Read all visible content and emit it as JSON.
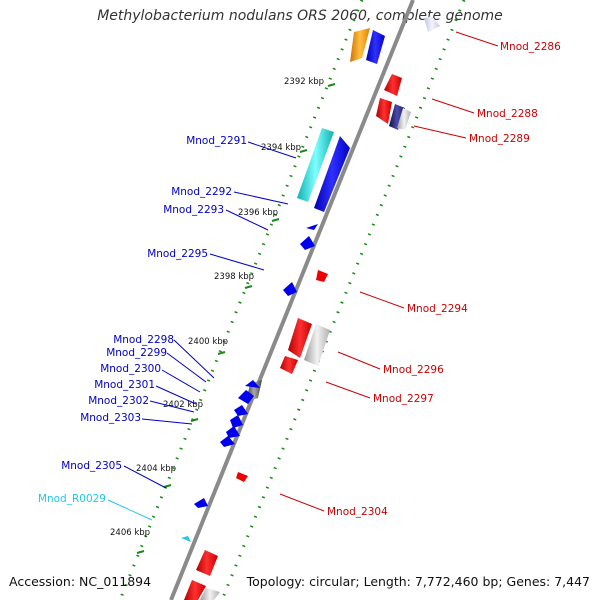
{
  "title": "Methylobacterium nodulans ORS 2060, complete genome",
  "accession": "Accession: NC_011894",
  "summary": "Topology: circular; Length: 7,772,460 bp; Genes: 7,447",
  "colors": {
    "plus": "#0000ee",
    "minus": "#ee0000",
    "rna": "#22c8e8",
    "tick": "#1a8a1a",
    "backbone": "#8a8a8a"
  },
  "ticks": [
    "2392 kbp",
    "2394 kbp",
    "2396 kbp",
    "2398 kbp",
    "2400 kbp",
    "2402 kbp",
    "2404 kbp",
    "2406 kbp"
  ],
  "plus_labels": [
    "Mnod_2291",
    "Mnod_2292",
    "Mnod_2293",
    "Mnod_2295",
    "Mnod_2298",
    "Mnod_2299",
    "Mnod_2300",
    "Mnod_2301",
    "Mnod_2302",
    "Mnod_2303",
    "Mnod_2305"
  ],
  "rna_labels": [
    "Mnod_R0029"
  ],
  "minus_labels": [
    "Mnod_2286",
    "Mnod_2288",
    "Mnod_2289",
    "Mnod_2294",
    "Mnod_2296",
    "Mnod_2297",
    "Mnod_2304"
  ]
}
